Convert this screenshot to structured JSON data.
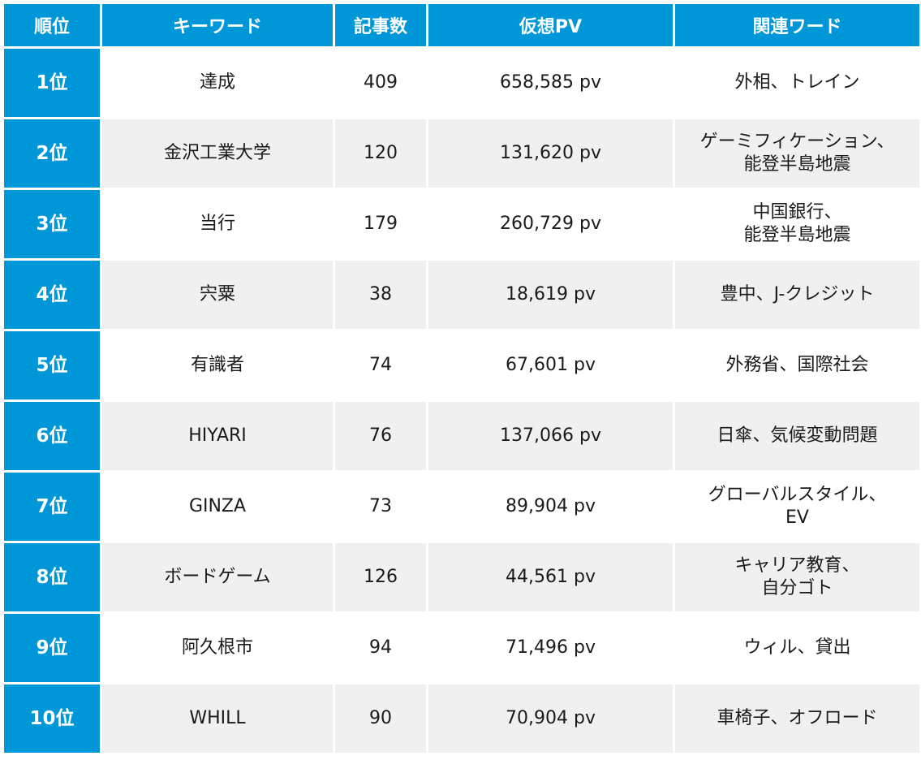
{
  "headers": {
    "rank": "順位",
    "keyword": "キーワード",
    "articles": "記事数",
    "pv": "仮想PV",
    "related": "関連ワード"
  },
  "rows": [
    {
      "rank": "1位",
      "keyword": "達成",
      "articles": "409",
      "pv": "658,585 pv",
      "related": [
        "外相、トレイン"
      ]
    },
    {
      "rank": "2位",
      "keyword": "金沢工業大学",
      "articles": "120",
      "pv": "131,620 pv",
      "related": [
        "ゲーミフィケーション、",
        "能登半島地震"
      ]
    },
    {
      "rank": "3位",
      "keyword": "当行",
      "articles": "179",
      "pv": "260,729 pv",
      "related": [
        "中国銀行、",
        "能登半島地震"
      ]
    },
    {
      "rank": "4位",
      "keyword": "宍粟",
      "articles": "38",
      "pv": "18,619 pv",
      "related": [
        "豊中、J-クレジット"
      ]
    },
    {
      "rank": "5位",
      "keyword": "有識者",
      "articles": "74",
      "pv": "67,601 pv",
      "related": [
        "外務省、国際社会"
      ]
    },
    {
      "rank": "6位",
      "keyword": "HIYARI",
      "articles": "76",
      "pv": "137,066 pv",
      "related": [
        "日傘、気候変動問題"
      ]
    },
    {
      "rank": "7位",
      "keyword": "GINZA",
      "articles": "73",
      "pv": "89,904 pv",
      "related": [
        "グローバルスタイル、",
        "EV"
      ]
    },
    {
      "rank": "8位",
      "keyword": "ボードゲーム",
      "articles": "126",
      "pv": "44,561 pv",
      "related": [
        "キャリア教育、",
        "自分ゴト"
      ]
    },
    {
      "rank": "9位",
      "keyword": "阿久根市",
      "articles": "94",
      "pv": "71,496 pv",
      "related": [
        "ウィル、貸出"
      ]
    },
    {
      "rank": "10位",
      "keyword": "WHILL",
      "articles": "90",
      "pv": "70,904 pv",
      "related": [
        "車椅子、オフロード"
      ]
    }
  ],
  "colors": {
    "header_bg": "#0097d9",
    "rank_bg": "#0097d9",
    "row_alt_bg": "#f0f0f0",
    "row_bg": "#ffffff"
  }
}
